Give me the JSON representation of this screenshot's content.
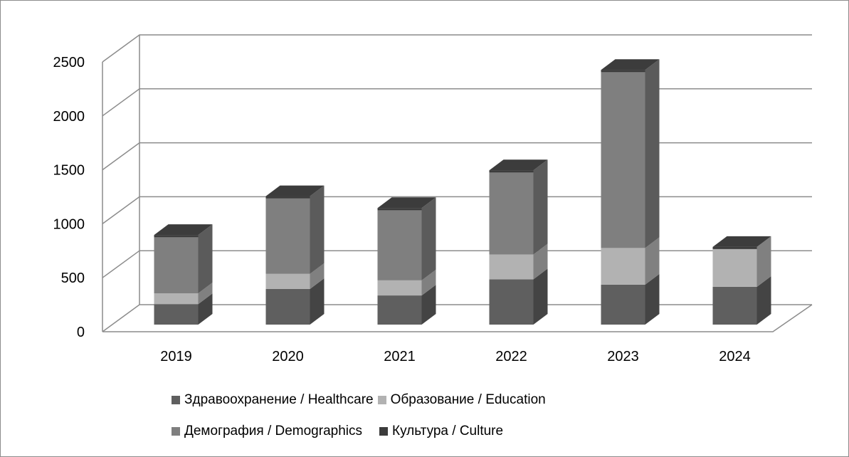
{
  "chart_data": {
    "type": "bar",
    "stacked": true,
    "three_d": true,
    "categories": [
      "2019",
      "2020",
      "2021",
      "2022",
      "2023",
      "2024"
    ],
    "series": [
      {
        "name": "Здравоохранение / Healthcare",
        "color": "#5f5f5f",
        "values": [
          190,
          330,
          270,
          420,
          370,
          350
        ]
      },
      {
        "name": "Образование / Education",
        "color": "#b2b2b2",
        "values": [
          100,
          140,
          140,
          230,
          340,
          370
        ]
      },
      {
        "name": "Демография / Demographics",
        "color": "#7f7f7f",
        "values": [
          540,
          720,
          670,
          780,
          1650,
          0
        ]
      },
      {
        "name": "Культура / Culture",
        "color": "#3c3c3c",
        "values": [
          0,
          0,
          0,
          0,
          0,
          0
        ]
      }
    ],
    "ylim": [
      0,
      2500
    ],
    "yticks": [
      "0",
      "500",
      "1000",
      "1500",
      "2000",
      "2500"
    ],
    "grid": true,
    "legend_position": "bottom",
    "title": "",
    "xlabel": "",
    "ylabel": ""
  }
}
